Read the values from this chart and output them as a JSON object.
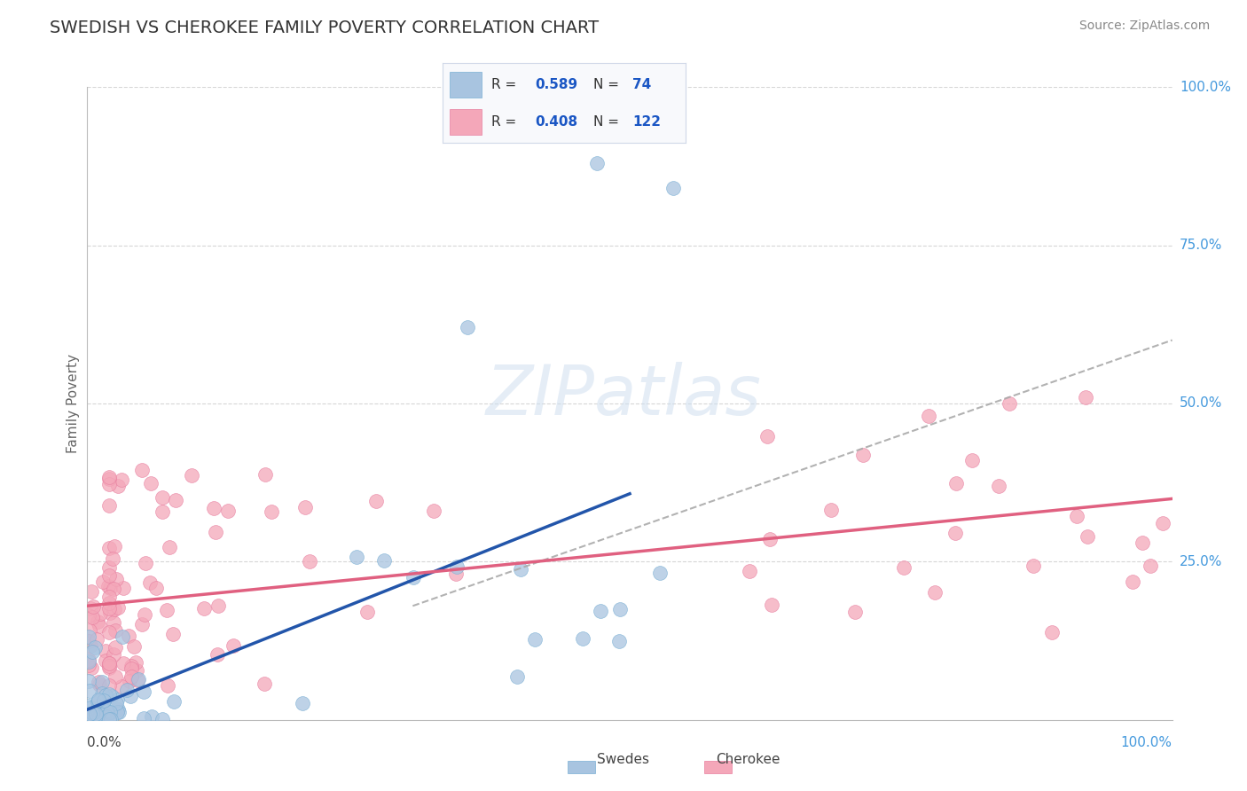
{
  "title": "SWEDISH VS CHEROKEE FAMILY POVERTY CORRELATION CHART",
  "source": "Source: ZipAtlas.com",
  "ylabel": "Family Poverty",
  "swedes_R": 0.589,
  "swedes_N": 74,
  "cherokee_R": 0.408,
  "cherokee_N": 122,
  "swedes_color": "#a8c4e0",
  "swedes_edge_color": "#7aafd4",
  "cherokee_color": "#f4a7b9",
  "cherokee_edge_color": "#e87fa0",
  "swedes_line_color": "#2255aa",
  "cherokee_line_color": "#e06080",
  "trendline_color": "#aaaaaa",
  "background_color": "#ffffff",
  "grid_color": "#cccccc",
  "title_color": "#333333",
  "source_color": "#888888",
  "legend_R_color": "#1a56c4",
  "legend_N_color": "#1a56c4",
  "legend_label_color": "#333333",
  "legend_bg": "#f8f9fc",
  "legend_border": "#d0d8e8",
  "axis_label_color_blue": "#4499dd",
  "axis_label_color_dark": "#444444",
  "watermark_color": "#d0dff0"
}
